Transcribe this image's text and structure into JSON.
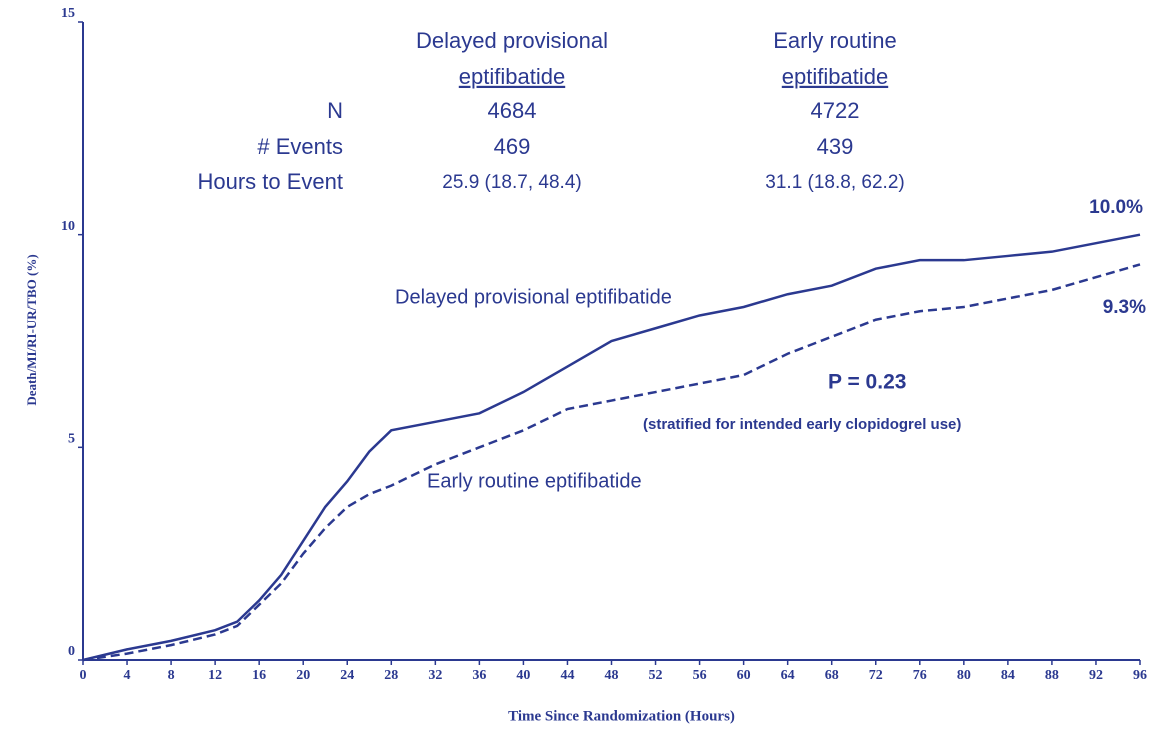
{
  "chart_data": {
    "type": "line",
    "xlabel": "Time Since Randomization (Hours)",
    "ylabel": "Death/MI/RI-UR/TBO (%)",
    "x": [
      0,
      4,
      8,
      12,
      14,
      16,
      18,
      20,
      22,
      24,
      26,
      28,
      32,
      36,
      40,
      44,
      48,
      52,
      56,
      60,
      64,
      68,
      72,
      76,
      80,
      84,
      88,
      92,
      96
    ],
    "series": [
      {
        "name": "Delayed provisional eptifibatide",
        "color": "#2b3990",
        "line_style": "solid",
        "end_label": "10.0%",
        "values": [
          0,
          0.25,
          0.45,
          0.7,
          0.9,
          1.4,
          2.0,
          2.8,
          3.6,
          4.2,
          4.9,
          5.4,
          5.6,
          5.8,
          6.3,
          6.9,
          7.5,
          7.8,
          8.1,
          8.3,
          8.6,
          8.8,
          9.2,
          9.4,
          9.4,
          9.5,
          9.6,
          9.8,
          10.0
        ]
      },
      {
        "name": "Early routine eptifibatide",
        "color": "#2b3990",
        "line_style": "dashed",
        "end_label": "9.3%",
        "values": [
          0,
          0.15,
          0.35,
          0.6,
          0.8,
          1.3,
          1.8,
          2.5,
          3.1,
          3.6,
          3.9,
          4.1,
          4.6,
          5.0,
          5.4,
          5.9,
          6.1,
          6.3,
          6.5,
          6.7,
          7.2,
          7.6,
          8.0,
          8.2,
          8.3,
          8.5,
          8.7,
          9.0,
          9.3
        ]
      }
    ],
    "xlim": [
      0,
      96
    ],
    "xticks": [
      0,
      4,
      8,
      12,
      16,
      20,
      24,
      28,
      32,
      36,
      40,
      44,
      48,
      52,
      56,
      60,
      64,
      68,
      72,
      76,
      80,
      84,
      88,
      92,
      96
    ],
    "ylim": [
      0,
      15
    ],
    "yticks": [
      0,
      5,
      10,
      15
    ],
    "grid": false,
    "annotations": [
      "P = 0.23",
      "(stratified for intended early clopidogrel use)"
    ],
    "table": {
      "columns": [
        [
          "Delayed provisional",
          "eptifibatide"
        ],
        [
          "Early routine",
          "eptifibatide"
        ]
      ],
      "rows": [
        {
          "label": "N",
          "values": [
            4684,
            4722
          ]
        },
        {
          "label": "# Events",
          "values": [
            469,
            439
          ]
        },
        {
          "label": "Hours to Event",
          "values": [
            "25.9 (18.7, 48.4)",
            "31.1 (18.8, 62.2)"
          ]
        }
      ]
    }
  }
}
